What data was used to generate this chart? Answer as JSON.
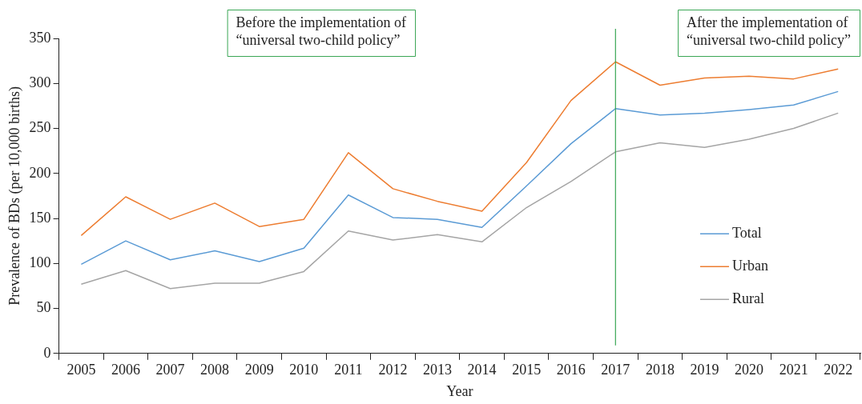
{
  "chart_data": {
    "type": "line",
    "xlabel": "Year",
    "ylabel": "Prevalence of BDs (per 10,000 births)",
    "categories": [
      "2005",
      "2006",
      "2007",
      "2008",
      "2009",
      "2010",
      "2011",
      "2012",
      "2013",
      "2014",
      "2015",
      "2016",
      "2017",
      "2018",
      "2019",
      "2020",
      "2021",
      "2022"
    ],
    "series": [
      {
        "name": "Total",
        "color": "#5b9bd5",
        "values": [
          99,
          125,
          104,
          114,
          102,
          117,
          176,
          151,
          149,
          140,
          186,
          233,
          272,
          265,
          267,
          271,
          276,
          291
        ]
      },
      {
        "name": "Urban",
        "color": "#ed7d31",
        "values": [
          131,
          174,
          149,
          167,
          141,
          149,
          223,
          183,
          169,
          158,
          212,
          281,
          324,
          298,
          306,
          308,
          305,
          316
        ]
      },
      {
        "name": "Rural",
        "color": "#a5a5a5",
        "values": [
          77,
          92,
          72,
          78,
          78,
          91,
          136,
          126,
          132,
          124,
          162,
          191,
          224,
          234,
          229,
          238,
          250,
          267
        ]
      }
    ],
    "ylim": [
      0,
      350
    ],
    "yticks": [
      0,
      50,
      100,
      150,
      200,
      250,
      300,
      350
    ],
    "ref_lines": [
      {
        "axis": "x",
        "value": "2017",
        "color": "#3aa655"
      }
    ],
    "annotations": [
      "Before the implementation of\n“universal two-child policy”",
      "After the implementation of\n“universal two-child policy”"
    ],
    "legend": "right",
    "grid": false,
    "marker": "none",
    "line_style": "solid"
  }
}
